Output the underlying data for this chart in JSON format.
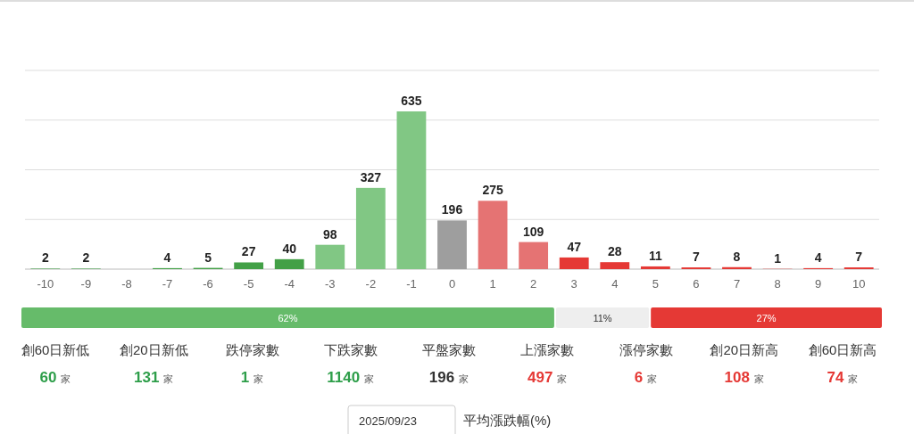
{
  "chart_data": [
    {
      "type": "bar",
      "categories": [
        "-10",
        "-9",
        "-8",
        "-7",
        "-6",
        "-5",
        "-4",
        "-3",
        "-2",
        "-1",
        "0",
        "1",
        "2",
        "3",
        "4",
        "5",
        "6",
        "7",
        "8",
        "9",
        "10"
      ],
      "values": [
        2,
        2,
        0,
        4,
        5,
        27,
        40,
        98,
        327,
        635,
        196,
        275,
        109,
        47,
        28,
        11,
        7,
        8,
        1,
        4,
        7
      ],
      "value_labels": [
        "2",
        "2",
        null,
        "4",
        "5",
        "27",
        "40",
        "98",
        "327",
        "635",
        "196",
        "275",
        "109",
        "47",
        "28",
        "11",
        "7",
        "8",
        "1",
        "4",
        "7"
      ],
      "colors": [
        "#43a047",
        "#43a047",
        "#43a047",
        "#43a047",
        "#43a047",
        "#43a047",
        "#43a047",
        "#81c784",
        "#81c784",
        "#81c784",
        "#9e9e9e",
        "#e57373",
        "#e57373",
        "#e53935",
        "#e53935",
        "#e53935",
        "#e53935",
        "#e53935",
        "#e53935",
        "#e53935",
        "#e53935"
      ],
      "ylim": [
        0,
        800
      ],
      "yticks": [
        {
          "value": 0,
          "label": null
        },
        {
          "value": 200,
          "label": null
        },
        {
          "value": 400,
          "label": null
        },
        {
          "value": 600,
          "label": null
        },
        {
          "value": 800,
          "label": null
        }
      ],
      "grid": "y",
      "tick_labels": "x"
    },
    {
      "type": "bar",
      "orientation": "horizontal",
      "stacked": true,
      "categories": [
        null
      ],
      "xlim": [
        0,
        100
      ],
      "series": [
        {
          "color": "#66bb6a",
          "values": [
            62
          ],
          "value_labels": [
            "62%"
          ]
        },
        {
          "color": "#eeeeee",
          "values": [
            11
          ],
          "value_labels": [
            "11%"
          ]
        },
        {
          "color": "#e53935",
          "values": [
            27
          ],
          "value_labels": [
            "27%"
          ]
        }
      ]
    },
    {
      "type": "other",
      "categories": [
        "創60日新低",
        "創20日新低",
        "跌停家數",
        "下跌家數",
        "平盤家數",
        "上漲家數",
        "漲停家數",
        "創20日新高",
        "創60日新高"
      ],
      "value_labels": [
        "60 家",
        "131 家",
        "1 家",
        "1140 家",
        "196 家",
        "497 家",
        "6 家",
        "108 家",
        "74 家"
      ],
      "colors": [
        "#2e9e4a",
        "#2e9e4a",
        "#2e9e4a",
        "#2e9e4a",
        "#333333",
        "#e53935",
        "#e53935",
        "#e53935",
        "#e53935"
      ],
      "annotations": [
        "2025/09/23",
        "平均漲跌幅(%)"
      ]
    }
  ]
}
